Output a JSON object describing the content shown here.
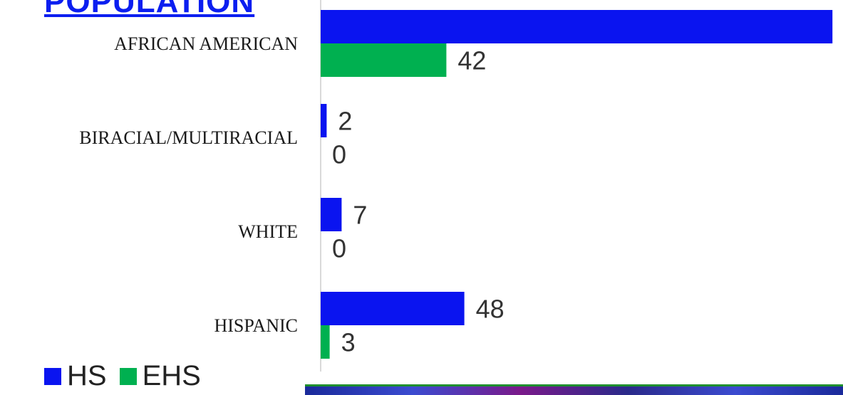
{
  "title": "POPULATION",
  "legend": {
    "hs_label": "HS",
    "ehs_label": "EHS"
  },
  "colors": {
    "hs": "#0a14f0",
    "ehs": "#00b050",
    "title": "#0b1ef0",
    "axis": "#d9d9d9"
  },
  "chart_data": {
    "type": "bar",
    "orientation": "horizontal",
    "title": "POPULATION",
    "categories": [
      "AFRICAN AMERICAN",
      "BIRACIAL/MULTIRACIAL",
      "WHITE",
      "HISPANIC"
    ],
    "series": [
      {
        "name": "HS",
        "values": [
          171,
          2,
          7,
          48
        ]
      },
      {
        "name": "EHS",
        "values": [
          42,
          0,
          0,
          3
        ]
      }
    ],
    "xlim": [
      0,
      175
    ],
    "grid": false,
    "legend": "bottom-left"
  }
}
